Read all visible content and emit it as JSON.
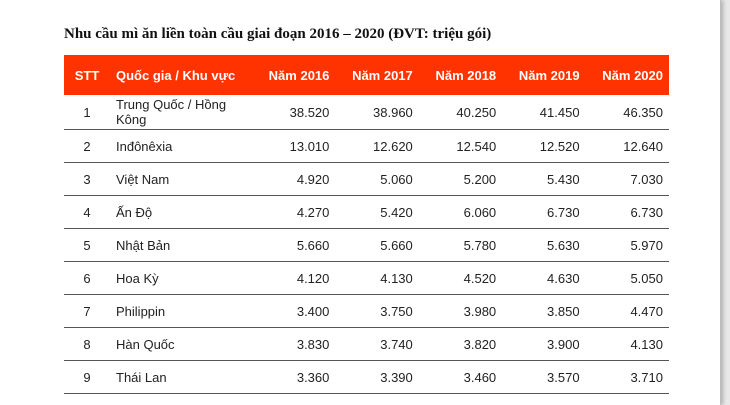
{
  "title": "Nhu cầu mì ăn liền toàn cầu giai đoạn 2016 – 2020 (ĐVT: triệu gói)",
  "header_color": "#ff3300",
  "columns": [
    "STT",
    "Quốc gia / Khu vực",
    "Năm 2016",
    "Năm 2017",
    "Năm 2018",
    "Năm 2019",
    "Năm 2020"
  ],
  "rows": [
    [
      "1",
      "Trung Quốc / Hồng Kông",
      "38.520",
      "38.960",
      "40.250",
      "41.450",
      "46.350"
    ],
    [
      "2",
      "Inđônêxia",
      "13.010",
      "12.620",
      "12.540",
      "12.520",
      "12.640"
    ],
    [
      "3",
      "Việt Nam",
      "4.920",
      "5.060",
      "5.200",
      "5.430",
      "7.030"
    ],
    [
      "4",
      "Ấn Độ",
      "4.270",
      "5.420",
      "6.060",
      "6.730",
      "6.730"
    ],
    [
      "5",
      "Nhật Bản",
      "5.660",
      "5.660",
      "5.780",
      "5.630",
      "5.970"
    ],
    [
      "6",
      "Hoa Kỳ",
      "4.120",
      "4.130",
      "4.520",
      "4.630",
      "5.050"
    ],
    [
      "7",
      "Philippin",
      "3.400",
      "3.750",
      "3.980",
      "3.850",
      "4.470"
    ],
    [
      "8",
      "Hàn Quốc",
      "3.830",
      "3.740",
      "3.820",
      "3.900",
      "4.130"
    ],
    [
      "9",
      "Thái Lan",
      "3.360",
      "3.390",
      "3.460",
      "3.570",
      "3.710"
    ]
  ]
}
